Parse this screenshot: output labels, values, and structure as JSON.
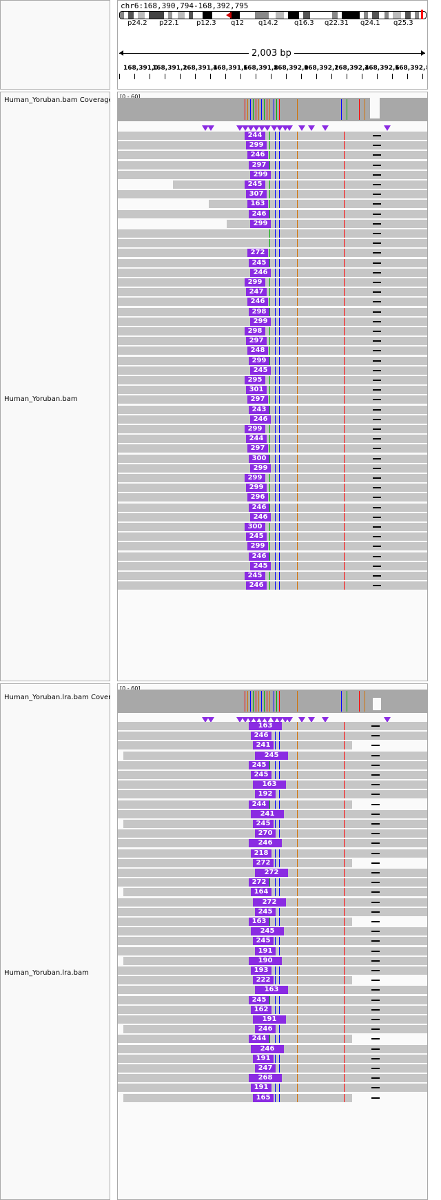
{
  "locus": "chr6:168,390,794-168,392,795",
  "ideogram": {
    "bands": [
      "p24.2",
      "p22.1",
      "p12.3",
      "q12",
      "q14.2",
      "q16.3",
      "q22.31",
      "q24.1",
      "q25.3"
    ]
  },
  "ruler": {
    "span": "2,003 bp",
    "ticks": [
      "168,391,0",
      "168,391,2",
      "168,391,4",
      "168,391,6",
      "168,391,8",
      "168,392,0",
      "168,392,2",
      "168,392,4",
      "168,392,6",
      "168,392,8"
    ]
  },
  "tracks": [
    {
      "coverage_label": "Human_Yoruban.bam Coverage",
      "coverage_range": "[0 - 60]",
      "reads_label": "Human_Yoruban.bam"
    },
    {
      "coverage_label": "Human_Yoruban.lra.bam Coverage",
      "coverage_range": "[0 - 60]",
      "reads_label": "Human_Yoruban.lra.bam"
    }
  ],
  "colors": {
    "insertion": "#8a2be2",
    "read": "#c6c6c6",
    "coverage": "#a8a8a8",
    "mismatch_a": "#00b000",
    "mismatch_c": "#0000ff",
    "mismatch_g": "#d17105",
    "mismatch_t": "#ff0000"
  },
  "track1_ins_labels": [
    "244",
    "299",
    "246",
    "297",
    "299",
    "245",
    "307",
    "163",
    "246",
    "299",
    "",
    "",
    "272",
    "245",
    "246",
    "299",
    "247",
    "246",
    "298",
    "299",
    "298",
    "297",
    "248",
    "299",
    "245",
    "295",
    "301",
    "297",
    "243",
    "246",
    "299",
    "244",
    "297",
    "300",
    "299",
    "299",
    "299",
    "296",
    "246",
    "246",
    "300",
    "245",
    "299",
    "246",
    "245",
    "245",
    "246"
  ],
  "track2_ins_labels": [
    "163",
    "246",
    "241",
    "245",
    "245",
    "245",
    "163",
    "192",
    "244",
    "241",
    "245",
    "270",
    "246",
    "218",
    "272",
    "272",
    "272",
    "164",
    "272",
    "245",
    "163",
    "245",
    "245",
    "191",
    "190",
    "193",
    "222",
    "163",
    "245",
    "162",
    "191",
    "246",
    "244",
    "246",
    "191",
    "247",
    "268",
    "191",
    "165"
  ]
}
